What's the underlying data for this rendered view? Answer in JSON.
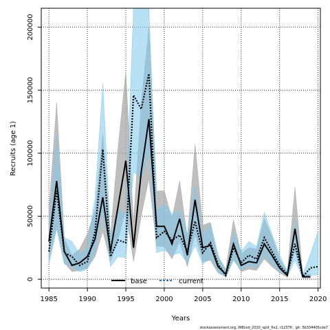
{
  "chart_data": {
    "type": "line",
    "xlabel": "Years",
    "ylabel": "Recruits (age 1)",
    "xlim": [
      1984,
      2020.3
    ],
    "ylim": [
      -7000,
      215000
    ],
    "x_ticks": [
      1985,
      1990,
      1995,
      2000,
      2005,
      2010,
      2015,
      2020
    ],
    "y_ticks": [
      0,
      50000,
      100000,
      150000,
      200000
    ],
    "grid": true,
    "legend_position": "bottom-center",
    "footer": "stockassessment.org, WBcod_2020_split_fix2, r12376 , git: 5b334405cda7",
    "series": [
      {
        "name": "base",
        "color": "#000000",
        "band_color": "#a8a8a8",
        "x": [
          1985,
          1986,
          1987,
          1988,
          1989,
          1990,
          1991,
          1992,
          1993,
          1994,
          1995,
          1996,
          1997,
          1998,
          1999,
          2000,
          2001,
          2002,
          2003,
          2004,
          2005,
          2006,
          2007,
          2008,
          2009,
          2010,
          2011,
          2012,
          2013,
          2014,
          2015,
          2016,
          2017,
          2018,
          2019
        ],
        "values": [
          30000,
          78000,
          22000,
          11000,
          13000,
          18000,
          32000,
          65000,
          22000,
          58000,
          94000,
          25000,
          85000,
          127000,
          42000,
          42000,
          28000,
          48000,
          19000,
          63000,
          25000,
          27000,
          10000,
          4000,
          28000,
          11000,
          14000,
          13000,
          28000,
          19000,
          9000,
          3000,
          40000,
          2000,
          2000
        ],
        "lower": [
          15000,
          42000,
          13000,
          6000,
          7000,
          9000,
          18000,
          38000,
          14000,
          32000,
          55000,
          14000,
          50000,
          80000,
          26000,
          26000,
          16000,
          30000,
          10000,
          36000,
          14000,
          15000,
          5000,
          2000,
          16000,
          6000,
          8000,
          7000,
          16000,
          10000,
          5000,
          1500,
          22000,
          800,
          800
        ],
        "upper": [
          55000,
          140000,
          32000,
          19000,
          24000,
          36000,
          55000,
          115000,
          35000,
          105000,
          165000,
          45000,
          140000,
          200000,
          70000,
          70000,
          48000,
          78000,
          33000,
          107000,
          43000,
          45000,
          18000,
          8000,
          47000,
          20000,
          25000,
          24000,
          48000,
          34000,
          16000,
          6000,
          73000,
          4000,
          4000
        ]
      },
      {
        "name": "current",
        "color": "#1f78b4",
        "band_color": "#7ec8ec",
        "x": [
          1985,
          1986,
          1987,
          1988,
          1989,
          1990,
          1991,
          1992,
          1993,
          1994,
          1995,
          1996,
          1997,
          1998,
          1999,
          2000,
          2001,
          2002,
          2003,
          2004,
          2005,
          2006,
          2007,
          2008,
          2009,
          2010,
          2011,
          2012,
          2013,
          2014,
          2015,
          2016,
          2017,
          2018,
          2019,
          2020
        ],
        "values": [
          22000,
          70000,
          21000,
          18000,
          11000,
          14000,
          38000,
          103000,
          18000,
          31000,
          29000,
          146000,
          135000,
          163000,
          33000,
          38000,
          31000,
          35000,
          22000,
          46000,
          21000,
          29000,
          12000,
          3000,
          25000,
          13000,
          19000,
          16000,
          33000,
          22000,
          11000,
          4000,
          28000,
          2000,
          9000,
          10000
        ],
        "lower": [
          12000,
          40000,
          12000,
          10000,
          6000,
          8000,
          22000,
          55000,
          10000,
          18000,
          17000,
          85000,
          80000,
          100000,
          21000,
          23000,
          19000,
          21000,
          13000,
          27000,
          12000,
          17000,
          6000,
          1500,
          15000,
          7000,
          11000,
          9000,
          19000,
          12000,
          6000,
          2000,
          15000,
          800,
          3000,
          4000
        ],
        "upper": [
          40000,
          115000,
          33000,
          30000,
          20000,
          26000,
          65000,
          155000,
          32000,
          55000,
          52000,
          215000,
          215000,
          215000,
          55000,
          60000,
          52000,
          55000,
          36000,
          75000,
          35000,
          44000,
          19000,
          6000,
          38000,
          22000,
          30000,
          26000,
          53000,
          36000,
          19000,
          7000,
          48000,
          4000,
          20000,
          38000
        ]
      }
    ]
  }
}
